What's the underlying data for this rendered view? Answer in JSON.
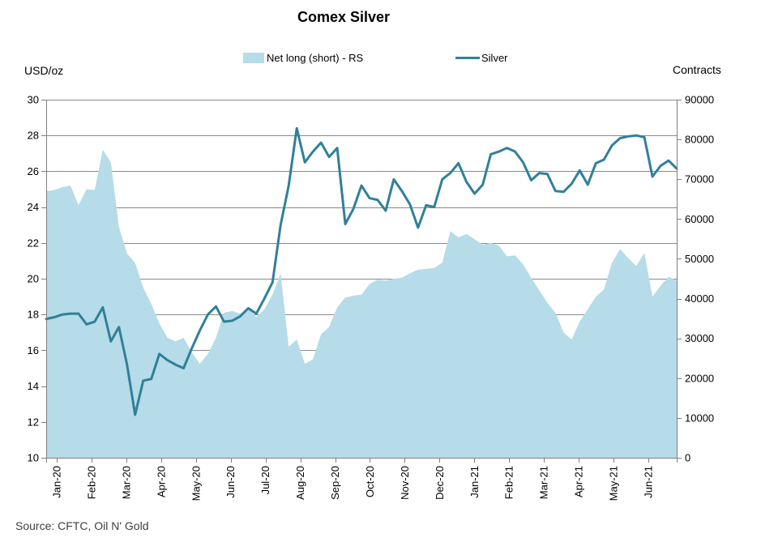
{
  "title": {
    "text": "Comex Silver"
  },
  "legend": {
    "area_label": "Net long (short) - RS",
    "line_label": "Silver"
  },
  "axes": {
    "left_title": "USD/oz",
    "right_title": "Contracts",
    "left_ticks": [
      "30",
      "28",
      "26",
      "24",
      "22",
      "20",
      "18",
      "16",
      "14",
      "12",
      "10"
    ],
    "right_ticks": [
      "90000",
      "80000",
      "70000",
      "60000",
      "50000",
      "40000",
      "30000",
      "20000",
      "10000",
      "0"
    ],
    "x_ticks": [
      "Jan-20",
      "Feb-20",
      "Mar-20",
      "Apr-20",
      "May-20",
      "Jun-20",
      "Jul-20",
      "Aug-20",
      "Sep-20",
      "Oct-20",
      "Nov-20",
      "Dec-20",
      "Jan-21",
      "Feb-21",
      "Mar-21",
      "Apr-21",
      "May-21",
      "Jun-21"
    ]
  },
  "source": "Source: CFTC, Oil N' Gold",
  "colors": {
    "area_fill": "#b5dce8",
    "line_stroke": "#30809a",
    "gridline": "#8a8a8a",
    "axis": "#7f7f7f",
    "text": "#000000"
  },
  "chart_data": {
    "type": "area+line",
    "title": "Comex Silver",
    "x_unit": "weekly points from Jan-2020 to Jun-2021",
    "categories": [
      "Jan-20",
      "Feb-20",
      "Mar-20",
      "Apr-20",
      "May-20",
      "Jun-20",
      "Jul-20",
      "Aug-20",
      "Sep-20",
      "Oct-20",
      "Nov-20",
      "Dec-20",
      "Jan-21",
      "Feb-21",
      "Mar-21",
      "Apr-21",
      "May-21",
      "Jun-21"
    ],
    "ylim_left": [
      10,
      30
    ],
    "ylabel_left": "USD/oz",
    "yticks_left": [
      10,
      12,
      14,
      16,
      18,
      20,
      22,
      24,
      26,
      28,
      30
    ],
    "ylim_right": [
      0,
      90000
    ],
    "ylabel_right": "Contracts",
    "yticks_right": [
      0,
      10000,
      20000,
      30000,
      40000,
      50000,
      60000,
      70000,
      80000,
      90000
    ],
    "grid": true,
    "legend_position": "top",
    "series": [
      {
        "name": "Net long (short) - RS",
        "type": "area",
        "axis": "right",
        "color": "#b5dce8",
        "values": [
          67000,
          67300,
          68000,
          68400,
          63500,
          67500,
          67300,
          77400,
          74250,
          58000,
          51300,
          49000,
          42750,
          38700,
          33750,
          30150,
          29250,
          30150,
          26550,
          23600,
          26100,
          30150,
          36450,
          36900,
          36225,
          37800,
          35325,
          37350,
          41000,
          46350,
          27900,
          29700,
          23600,
          24750,
          31050,
          32850,
          37800,
          40275,
          40725,
          41000,
          43650,
          44775,
          44550,
          45000,
          45225,
          46350,
          47250,
          47475,
          47700,
          49050,
          56925,
          55350,
          56250,
          54900,
          53550,
          54000,
          53325,
          50625,
          50850,
          48600,
          45225,
          42075,
          38925,
          36450,
          31500,
          29700,
          34200,
          37350,
          40500,
          42300,
          49050,
          52425,
          50175,
          48150,
          51525,
          40500,
          43200,
          45450,
          44550
        ]
      },
      {
        "name": "Silver",
        "type": "line",
        "axis": "left",
        "color": "#30809a",
        "values": [
          17.75,
          17.85,
          18.0,
          18.05,
          18.05,
          17.45,
          17.6,
          18.4,
          16.5,
          17.3,
          15.2,
          12.4,
          14.3,
          14.4,
          15.8,
          15.45,
          15.2,
          15.0,
          16.1,
          17.1,
          18.0,
          18.45,
          17.6,
          17.65,
          17.9,
          18.35,
          18.05,
          18.9,
          19.8,
          23.0,
          25.2,
          28.4,
          26.5,
          27.1,
          27.6,
          26.8,
          27.3,
          23.05,
          23.9,
          25.2,
          24.5,
          24.4,
          23.8,
          25.55,
          24.9,
          24.15,
          22.85,
          24.1,
          24.0,
          25.55,
          25.9,
          26.45,
          25.4,
          24.75,
          25.25,
          26.95,
          27.1,
          27.3,
          27.1,
          26.5,
          25.5,
          25.9,
          25.85,
          24.9,
          24.85,
          25.3,
          26.05,
          25.25,
          26.45,
          26.65,
          27.45,
          27.85,
          27.95,
          28.0,
          27.9,
          25.7,
          26.3,
          26.6,
          26.15
        ]
      }
    ]
  }
}
